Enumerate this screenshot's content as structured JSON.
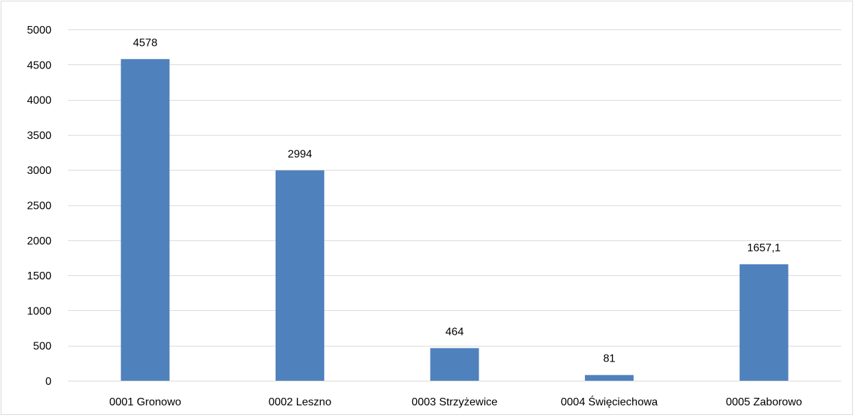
{
  "chart_data": {
    "type": "bar",
    "title": "",
    "xlabel": "",
    "ylabel": "",
    "categories": [
      "0001 Gronowo",
      "0002 Leszno",
      "0003 Strzyżewice",
      "0004 Święciechowa",
      "0005 Zaborowo"
    ],
    "values": [
      4578,
      2994,
      464,
      81,
      1657.1
    ],
    "data_labels": [
      "4578",
      "2994",
      "464",
      "81",
      "1657,1"
    ],
    "ylim": [
      0,
      5000
    ],
    "yticks": [
      0,
      500,
      1000,
      1500,
      2000,
      2500,
      3000,
      3500,
      4000,
      4500,
      5000
    ],
    "grid": true,
    "legend": "none",
    "colors": {
      "bar": "#4f81bd",
      "grid": "#d9d9d9",
      "text": "#000000"
    }
  }
}
